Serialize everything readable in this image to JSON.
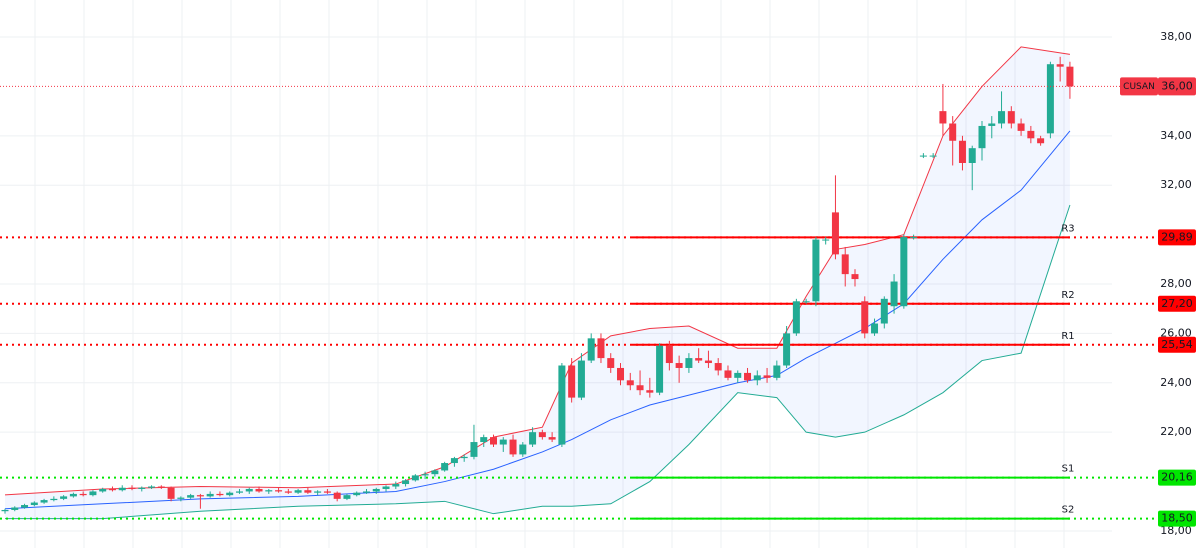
{
  "chart_data": {
    "type": "candlestick",
    "symbol": "CUSAN",
    "last_price": {
      "value": 36,
      "label": "36,00"
    },
    "ylim": [
      17.31,
      39.5
    ],
    "yticks": [
      {
        "value": 38,
        "label": "38,00"
      },
      {
        "value": 34,
        "label": "34,00"
      },
      {
        "value": 32,
        "label": "32,00"
      },
      {
        "value": 28,
        "label": "28,00"
      },
      {
        "value": 26,
        "label": "26,00"
      },
      {
        "value": 24,
        "label": "24,00"
      },
      {
        "value": 22,
        "label": "22,00"
      },
      {
        "value": 18,
        "label": "18,00"
      }
    ],
    "grid": true,
    "up_color": "#22ab94",
    "down_color": "#f23645",
    "ohlc": [
      [
        18.8,
        18.9,
        18.7,
        18.85
      ],
      [
        18.85,
        19.0,
        18.8,
        18.95
      ],
      [
        18.95,
        19.1,
        18.9,
        19.05
      ],
      [
        19.05,
        19.2,
        19.0,
        19.15
      ],
      [
        19.15,
        19.3,
        19.1,
        19.25
      ],
      [
        19.25,
        19.4,
        19.2,
        19.3
      ],
      [
        19.3,
        19.45,
        19.25,
        19.4
      ],
      [
        19.4,
        19.55,
        19.35,
        19.5
      ],
      [
        19.5,
        19.6,
        19.4,
        19.45
      ],
      [
        19.45,
        19.65,
        19.4,
        19.6
      ],
      [
        19.6,
        19.75,
        19.55,
        19.7
      ],
      [
        19.7,
        19.8,
        19.6,
        19.65
      ],
      [
        19.65,
        19.85,
        19.6,
        19.75
      ],
      [
        19.75,
        19.85,
        19.65,
        19.7
      ],
      [
        19.7,
        19.8,
        19.6,
        19.75
      ],
      [
        19.75,
        19.85,
        19.7,
        19.8
      ],
      [
        19.8,
        19.85,
        19.7,
        19.75
      ],
      [
        19.75,
        19.8,
        19.2,
        19.3
      ],
      [
        19.3,
        19.4,
        19.2,
        19.35
      ],
      [
        19.35,
        19.5,
        19.3,
        19.45
      ],
      [
        19.45,
        19.5,
        18.9,
        19.4
      ],
      [
        19.4,
        19.6,
        19.35,
        19.5
      ],
      [
        19.5,
        19.6,
        19.4,
        19.45
      ],
      [
        19.45,
        19.6,
        19.4,
        19.55
      ],
      [
        19.55,
        19.7,
        19.5,
        19.6
      ],
      [
        19.6,
        19.75,
        19.5,
        19.7
      ],
      [
        19.7,
        19.8,
        19.55,
        19.6
      ],
      [
        19.6,
        19.7,
        19.5,
        19.65
      ],
      [
        19.65,
        19.75,
        19.55,
        19.6
      ],
      [
        19.6,
        19.7,
        19.5,
        19.55
      ],
      [
        19.55,
        19.7,
        19.5,
        19.65
      ],
      [
        19.65,
        19.75,
        19.5,
        19.55
      ],
      [
        19.55,
        19.65,
        19.45,
        19.6
      ],
      [
        19.6,
        19.7,
        19.5,
        19.55
      ],
      [
        19.55,
        19.6,
        19.2,
        19.3
      ],
      [
        19.3,
        19.5,
        19.25,
        19.45
      ],
      [
        19.45,
        19.6,
        19.4,
        19.55
      ],
      [
        19.55,
        19.7,
        19.5,
        19.6
      ],
      [
        19.6,
        19.75,
        19.5,
        19.7
      ],
      [
        19.7,
        19.85,
        19.6,
        19.8
      ],
      [
        19.8,
        20.0,
        19.7,
        19.9
      ],
      [
        19.9,
        20.1,
        19.8,
        20.05
      ],
      [
        20.05,
        20.3,
        20.0,
        20.25
      ],
      [
        20.25,
        20.4,
        20.1,
        20.3
      ],
      [
        20.3,
        20.5,
        20.2,
        20.45
      ],
      [
        20.45,
        20.8,
        20.4,
        20.75
      ],
      [
        20.75,
        21.0,
        20.6,
        20.95
      ],
      [
        20.95,
        21.1,
        20.8,
        21.0
      ],
      [
        21.0,
        22.3,
        20.9,
        21.6
      ],
      [
        21.6,
        21.9,
        21.4,
        21.8
      ],
      [
        21.8,
        21.9,
        21.4,
        21.5
      ],
      [
        21.5,
        21.8,
        21.2,
        21.7
      ],
      [
        21.7,
        21.9,
        21.0,
        21.1
      ],
      [
        21.1,
        21.6,
        21.0,
        21.5
      ],
      [
        21.5,
        22.2,
        21.4,
        22.0
      ],
      [
        22.0,
        22.1,
        21.7,
        21.8
      ],
      [
        21.8,
        22.0,
        21.6,
        21.7
      ],
      [
        21.5,
        24.8,
        21.4,
        24.7
      ],
      [
        24.7,
        25.0,
        23.2,
        23.4
      ],
      [
        23.4,
        25.2,
        23.3,
        24.9
      ],
      [
        24.9,
        26.0,
        24.8,
        25.8
      ],
      [
        25.8,
        26.0,
        24.8,
        25.0
      ],
      [
        25.0,
        25.2,
        24.4,
        24.6
      ],
      [
        24.6,
        24.8,
        23.9,
        24.1
      ],
      [
        24.1,
        24.4,
        23.7,
        23.9
      ],
      [
        23.9,
        24.5,
        23.5,
        23.7
      ],
      [
        23.7,
        24.2,
        23.4,
        23.6
      ],
      [
        23.6,
        25.6,
        23.5,
        25.5
      ],
      [
        25.5,
        25.7,
        24.5,
        24.8
      ],
      [
        24.8,
        25.1,
        24.0,
        24.6
      ],
      [
        24.6,
        25.2,
        24.4,
        25.0
      ],
      [
        25.0,
        25.4,
        24.8,
        24.9
      ],
      [
        24.9,
        25.3,
        24.6,
        24.8
      ],
      [
        24.8,
        25.0,
        24.3,
        24.5
      ],
      [
        24.5,
        24.7,
        24.1,
        24.2
      ],
      [
        24.2,
        24.5,
        24.0,
        24.4
      ],
      [
        24.4,
        24.6,
        24.0,
        24.1
      ],
      [
        24.1,
        24.5,
        23.9,
        24.3
      ],
      [
        24.3,
        24.6,
        24.0,
        24.2
      ],
      [
        24.2,
        24.9,
        24.1,
        24.7
      ],
      [
        24.7,
        26.3,
        24.6,
        26.0
      ],
      [
        26.0,
        27.4,
        25.9,
        27.3
      ],
      [
        27.3,
        27.4,
        27.2,
        27.3
      ],
      [
        27.3,
        29.9,
        27.1,
        29.8
      ],
      [
        29.8,
        29.9,
        29.6,
        29.8
      ],
      [
        30.9,
        32.4,
        29.0,
        29.2
      ],
      [
        29.2,
        29.5,
        27.9,
        28.4
      ],
      [
        28.4,
        28.6,
        27.9,
        28.2
      ],
      [
        27.3,
        27.5,
        25.8,
        26.0
      ],
      [
        26.0,
        26.6,
        25.9,
        26.4
      ],
      [
        26.4,
        27.5,
        26.2,
        27.4
      ],
      [
        27.1,
        28.4,
        26.8,
        28.1
      ],
      [
        27.1,
        30.0,
        27.0,
        29.9
      ],
      [
        29.9,
        30.0,
        29.8,
        29.9
      ],
      [
        33.2,
        33.3,
        33.1,
        33.2
      ],
      [
        33.2,
        33.3,
        33.1,
        33.2
      ],
      [
        35.0,
        36.1,
        34.0,
        34.5
      ],
      [
        34.5,
        34.8,
        32.8,
        33.8
      ],
      [
        33.8,
        34.0,
        32.6,
        32.9
      ],
      [
        32.9,
        33.6,
        31.8,
        33.5
      ],
      [
        33.5,
        34.6,
        33.0,
        34.4
      ],
      [
        34.4,
        34.8,
        33.9,
        34.5
      ],
      [
        34.5,
        35.8,
        34.3,
        35.0
      ],
      [
        35.0,
        35.2,
        34.3,
        34.5
      ],
      [
        34.5,
        34.7,
        34.0,
        34.2
      ],
      [
        34.2,
        34.4,
        33.7,
        33.9
      ],
      [
        33.9,
        34.0,
        33.6,
        33.7
      ],
      [
        34.1,
        37.0,
        33.9,
        36.9
      ],
      [
        36.9,
        37.2,
        36.2,
        36.8
      ],
      [
        36.8,
        37.0,
        35.5,
        36.0
      ]
    ],
    "bands": {
      "x": [
        0,
        10,
        20,
        30,
        40,
        45,
        50,
        55,
        58,
        62,
        66,
        70,
        75,
        79,
        82,
        85,
        88,
        92,
        96,
        100,
        104,
        109
      ],
      "upper": {
        "color": "#f23645",
        "values": [
          19.46,
          19.7,
          19.8,
          19.75,
          19.9,
          20.6,
          21.8,
          22.2,
          24.8,
          25.9,
          26.2,
          26.3,
          25.4,
          25.4,
          27.5,
          29.4,
          29.6,
          30.0,
          34.0,
          36.0,
          37.6,
          37.3
        ]
      },
      "middle": {
        "color": "#2962ff",
        "values": [
          18.9,
          19.1,
          19.3,
          19.4,
          19.6,
          20.0,
          20.5,
          21.2,
          21.7,
          22.5,
          23.1,
          23.5,
          24.0,
          24.3,
          25.0,
          25.6,
          26.2,
          27.2,
          29.0,
          30.6,
          31.8,
          34.2
        ]
      },
      "lower": {
        "color": "#22ab94",
        "values": [
          18.5,
          18.5,
          18.8,
          19.0,
          19.1,
          19.2,
          18.7,
          19.0,
          19.0,
          19.1,
          20.0,
          21.5,
          23.6,
          23.4,
          22.0,
          21.8,
          22.0,
          22.7,
          23.6,
          24.9,
          25.2,
          31.2
        ]
      }
    },
    "levels": [
      {
        "name": "R3",
        "value": 29.89,
        "label": "29,89",
        "color": "#ff0000"
      },
      {
        "name": "R2",
        "value": 27.2,
        "label": "27,20",
        "color": "#ff0000"
      },
      {
        "name": "R1",
        "value": 25.54,
        "label": "25,54",
        "color": "#ff0000"
      },
      {
        "name": "S1",
        "value": 20.16,
        "label": "20,16",
        "color": "#00e600"
      },
      {
        "name": "S2",
        "value": 18.5,
        "label": "18,50",
        "color": "#00e600"
      }
    ]
  }
}
